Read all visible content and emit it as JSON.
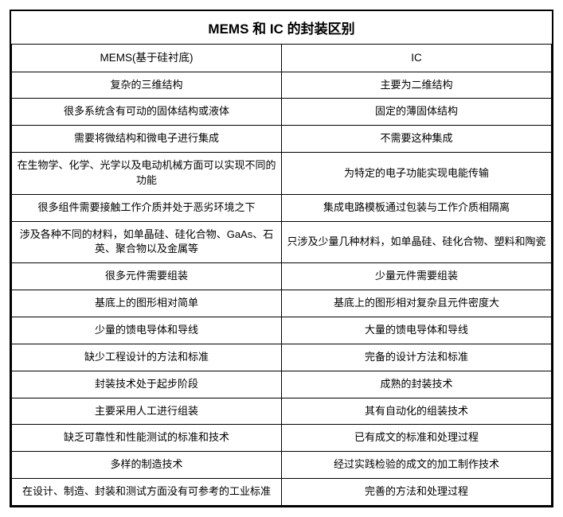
{
  "title": "MEMS 和 IC 的封装区别",
  "columns": [
    "MEMS(基于硅衬底)",
    "IC"
  ],
  "rows": [
    [
      "复杂的三维结构",
      "主要为二维结构"
    ],
    [
      "很多系统含有可动的固体结构或液体",
      "固定的薄固体结构"
    ],
    [
      "需要将微结构和微电子进行集成",
      "不需要这种集成"
    ],
    [
      "在生物学、化学、光学以及电动机械方面可以实现不同的功能",
      "为特定的电子功能实现电能传输"
    ],
    [
      "很多组件需要接触工作介质并处于恶劣环境之下",
      "集成电路模板通过包装与工作介质相隔离"
    ],
    [
      "涉及各种不同的材料，如单晶硅、硅化合物、GaAs、石英、聚合物以及金属等",
      "只涉及少量几种材料，如单晶硅、硅化合物、塑料和陶瓷"
    ],
    [
      "很多元件需要组装",
      "少量元件需要组装"
    ],
    [
      "基底上的图形相对简单",
      "基底上的图形相对复杂且元件密度大"
    ],
    [
      "少量的馈电导体和导线",
      "大量的馈电导体和导线"
    ],
    [
      "缺少工程设计的方法和标准",
      "完备的设计方法和标准"
    ],
    [
      "封装技术处于起步阶段",
      "成熟的封装技术"
    ],
    [
      "主要采用人工进行组装",
      "其有自动化的组装技术"
    ],
    [
      "缺乏可靠性和性能测试的标准和技术",
      "已有成文的标准和处理过程"
    ],
    [
      "多样的制造技术",
      "经过实践检验的成文的加工制作技术"
    ],
    [
      "在设计、制造、封装和测试方面没有可参考的工业标准",
      "完善的方法和处理过程"
    ]
  ],
  "styling": {
    "border_color": "#000000",
    "background_color": "#ffffff",
    "title_fontsize": 17,
    "title_fontweight": "bold",
    "cell_fontsize": 13,
    "font_family": "Microsoft YaHei, SimSun, Arial, sans-serif",
    "text_align": "center",
    "col_widths_pct": [
      50,
      50
    ]
  }
}
